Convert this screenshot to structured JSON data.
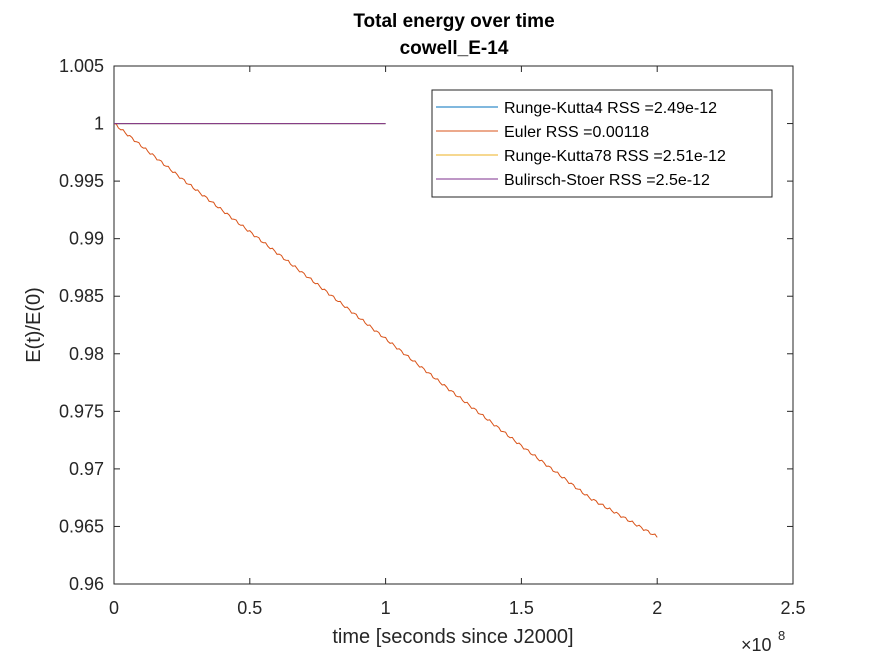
{
  "chart_data": {
    "type": "line",
    "title": "Total energy over time",
    "subtitle": "cowell_E-14",
    "xlabel": "time [seconds since J2000]",
    "ylabel": "E(t)/E(0)",
    "x_exponent_label": "×10",
    "x_exponent_power": "8",
    "xlim": [
      0,
      2.5
    ],
    "ylim": [
      0.96,
      1.005
    ],
    "x_ticks": [
      0,
      0.5,
      1,
      1.5,
      2,
      2.5
    ],
    "x_tick_labels": [
      "0",
      "0.5",
      "1",
      "1.5",
      "2",
      "2.5"
    ],
    "y_ticks": [
      0.96,
      0.965,
      0.97,
      0.975,
      0.98,
      0.985,
      0.99,
      0.995,
      1,
      1.005
    ],
    "y_tick_labels": [
      "0.96",
      "0.965",
      "0.97",
      "0.975",
      "0.98",
      "0.985",
      "0.99",
      "0.995",
      "1",
      "1.005"
    ],
    "grid": false,
    "legend_position": "top-right",
    "series": [
      {
        "name": "Runge-Kutta4 RSS =2.49e-12",
        "color": "#0072BD",
        "x": [
          0,
          1
        ],
        "y": [
          1,
          1
        ]
      },
      {
        "name": "Euler RSS =0.00118",
        "color": "#D95319",
        "x": [
          0,
          0.25,
          0.5,
          0.75,
          1.0,
          1.25,
          1.5,
          1.75,
          2.0
        ],
        "y": [
          1.0,
          0.9952,
          0.9906,
          0.986,
          0.9813,
          0.9766,
          0.972,
          0.9675,
          0.9641
        ]
      },
      {
        "name": "Runge-Kutta78 RSS =2.51e-12",
        "color": "#EDB120",
        "x": [
          0,
          1
        ],
        "y": [
          1,
          1
        ]
      },
      {
        "name": "Bulirsch-Stoer RSS =2.5e-12",
        "color": "#7E2F8E",
        "x": [
          0,
          1
        ],
        "y": [
          1,
          1
        ]
      }
    ]
  }
}
